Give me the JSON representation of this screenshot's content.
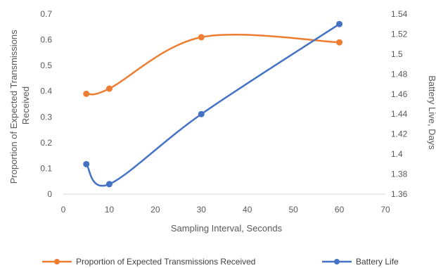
{
  "chart_data": {
    "type": "line",
    "xlabel": "Sampling Interval, Seconds",
    "ylabel": "Proportion of Expected Transmissions Received",
    "ylabel_line1": "Proportion of Expected Transmissions",
    "ylabel_line2": "Received",
    "y2label": "Battery Live, Days",
    "xlim": [
      0,
      70
    ],
    "xticks": [
      "0",
      "10",
      "20",
      "30",
      "40",
      "50",
      "60",
      "70"
    ],
    "ylim": [
      0,
      0.7
    ],
    "yticks": [
      "0",
      "0.1",
      "0.2",
      "0.3",
      "0.4",
      "0.5",
      "0.6",
      "0.7"
    ],
    "y2lim": [
      1.36,
      1.54
    ],
    "y2ticks": [
      "1.36",
      "1.38",
      "1.4",
      "1.42",
      "1.44",
      "1.46",
      "1.48",
      "1.5",
      "1.52",
      "1.54"
    ],
    "grid": false,
    "legend_position": "bottom",
    "series": [
      {
        "name": "Proportion of Expected Transmissions Received",
        "axis": "left",
        "color": "#ED7D31",
        "x": [
          5,
          10,
          30,
          60
        ],
        "y": [
          0.39,
          0.41,
          0.61,
          0.59
        ]
      },
      {
        "name": "Battery Life",
        "axis": "right",
        "color": "#4472C4",
        "x": [
          5,
          10,
          30,
          60
        ],
        "y": [
          1.39,
          1.37,
          1.44,
          1.53
        ]
      }
    ]
  }
}
